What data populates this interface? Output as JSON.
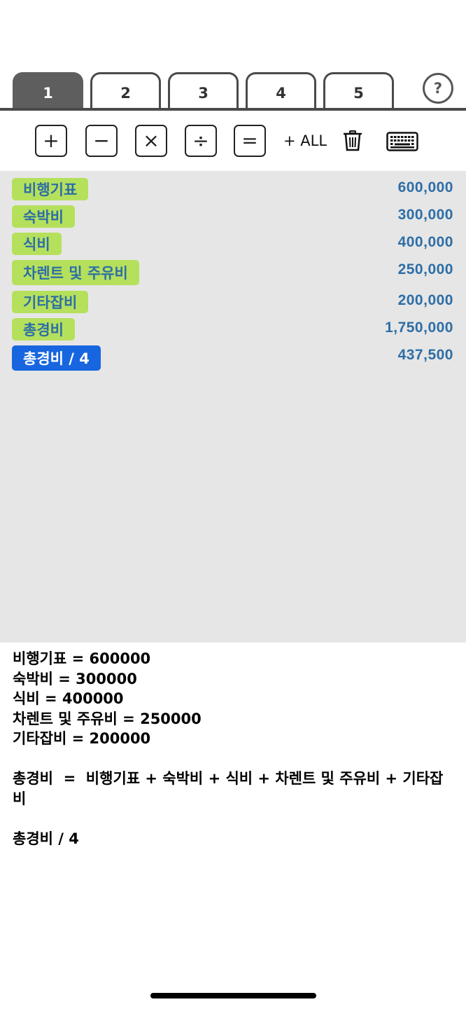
{
  "tabs": [
    {
      "label": "1",
      "active": true
    },
    {
      "label": "2",
      "active": false
    },
    {
      "label": "3",
      "active": false
    },
    {
      "label": "4",
      "active": false
    },
    {
      "label": "5",
      "active": false
    }
  ],
  "help_label": "?",
  "toolbar": {
    "plus": "+",
    "minus": "−",
    "times": "×",
    "divide": "÷",
    "equals": "=",
    "all_label": "+ ALL",
    "trash_icon": "trash-icon",
    "keyboard_icon": "keyboard-icon"
  },
  "items": [
    {
      "label": "비행기표",
      "value": "600,000"
    },
    {
      "label": "숙박비",
      "value": "300,000"
    },
    {
      "label": "식비",
      "value": "400,000"
    },
    {
      "label": "차렌트 및 주유비",
      "value": "250,000"
    },
    {
      "label": "기타잡비",
      "value": "200,000"
    },
    {
      "label": "총경비",
      "value": "1,750,000"
    },
    {
      "label": "총경비 / 4",
      "value": "437,500",
      "selected": true
    }
  ],
  "formula": {
    "lines": [
      "비행기표 = 600000",
      "숙박비 = 300000",
      "식비 = 400000",
      "차렌트 및 주유비 = 250000",
      "기타잡비 = 200000",
      "",
      "총경비  =  비행기표 + 숙박비 + 식비 + 차렌트 및 주유비 + 기타잡비",
      "",
      "총경비 / 4"
    ]
  },
  "colors": {
    "tag_green": "#b5e05c",
    "tag_blue": "#1766e0",
    "value_text": "#2d6ea6",
    "active_tab": "#5e5e5e",
    "list_bg": "#e6e6e6"
  }
}
